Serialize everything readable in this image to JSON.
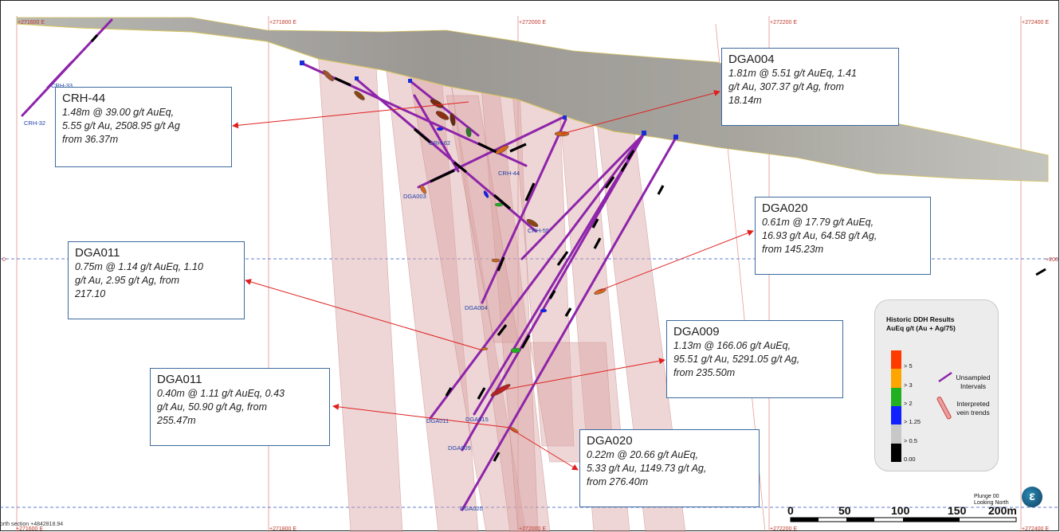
{
  "grid": {
    "top_labels": [
      "+271600 E",
      "+271800 E",
      "+272000 E",
      "+272200 E",
      "+272400 E"
    ],
    "bottom_labels": [
      "+271600 E",
      "+271800 E",
      "+272000 E",
      "+272200 E",
      "+272400 E"
    ],
    "left_elev_label": "0",
    "right_elev_label": "+200"
  },
  "holes": {
    "crh32": "CRH-32",
    "crh33": "CRH-33",
    "crh62": "CRH-62",
    "crh44": "CRH-44",
    "crh55": "CRH-55",
    "dga003": "DGA003",
    "dga004": "DGA004",
    "dga011": "DGA011",
    "dga015": "DGA015",
    "dga009": "DGA009",
    "dga020": "DGA020"
  },
  "callouts": {
    "crh44": {
      "hole": "CRH-44",
      "lines": [
        "1.48m @ 39.00 g/t AuEq,",
        "5.55 g/t Au, 2508.95 g/t Ag",
        "from 36.37m"
      ]
    },
    "dga004": {
      "hole": "DGA004",
      "lines": [
        "1.81m @ 5.51 g/t AuEq, 1.41",
        "g/t Au, 307.37 g/t Ag, from",
        "18.14m"
      ]
    },
    "dga020a": {
      "hole": "DGA020",
      "lines": [
        "0.61m @ 17.79 g/t AuEq,",
        "16.93 g/t Au, 64.58 g/t Ag,",
        "from 145.23m"
      ]
    },
    "dga011a": {
      "hole": "DGA011",
      "lines": [
        "0.75m @ 1.14 g/t AuEq, 1.10",
        "g/t Au, 2.95 g/t Ag, from",
        "217.10"
      ]
    },
    "dga009": {
      "hole": "DGA009",
      "lines": [
        "1.13m @ 166.06 g/t AuEq,",
        "95.51 g/t Au, 5291.05 g/t Ag,",
        "from 235.50m"
      ]
    },
    "dga011b": {
      "hole": "DGA011",
      "lines": [
        "0.40m @ 1.11 g/t AuEq, 0.43",
        "g/t Au, 50.90 g/t Ag, from",
        "255.47m"
      ]
    },
    "dga020b": {
      "hole": "DGA020",
      "lines": [
        "0.22m @ 20.66 g/t AuEq,",
        "5.33 g/t Au, 1149.73 g/t Ag,",
        "from 276.40m"
      ]
    }
  },
  "legend": {
    "title_line1": "Historic DDH Results",
    "title_line2": "AuEq g/t  (Au + Ag/75)",
    "bins": [
      {
        "label": "> 5",
        "color": "#ff3b00"
      },
      {
        "label": "> 3",
        "color": "#ffa500"
      },
      {
        "label": "> 2",
        "color": "#22b022"
      },
      {
        "label": "> 1.25",
        "color": "#1020ff"
      },
      {
        "label": "> 0.5",
        "color": "#c8c8c8"
      },
      {
        "label": "0.00",
        "color": "#000000"
      }
    ],
    "unsampled_label": "Unsampled\nIntervals",
    "vein_label": "Interpreted\nvein trends"
  },
  "scale_bar": {
    "labels": [
      "0",
      "50",
      "100",
      "150",
      "200m"
    ]
  },
  "plunge": "Plunge 00\nLooking North",
  "section_label": "orth section +4842818.94",
  "logo_letter": "ε",
  "colors": {
    "hole": "#8e24aa",
    "vein": "#e8a0a0",
    "arrow": "#e02020",
    "callout_border": "#3d6a9e"
  }
}
